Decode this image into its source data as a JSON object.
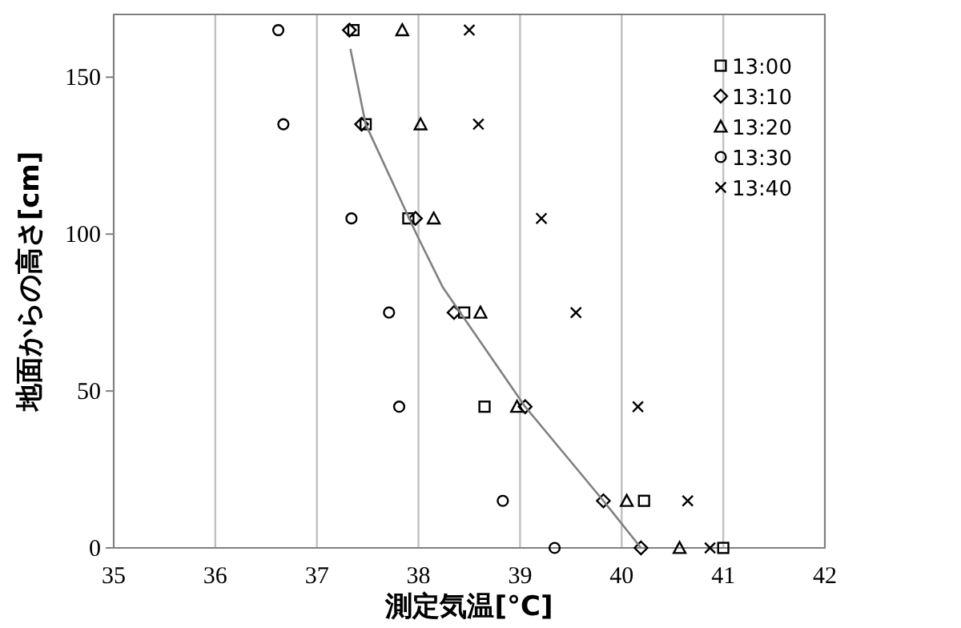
{
  "chart_data": {
    "type": "scatter",
    "xlabel": "測定気温[°C]",
    "ylabel": "地面からの高さ[cm]",
    "xlim": [
      35,
      42
    ],
    "xticks": [
      35,
      36,
      37,
      38,
      39,
      40,
      41,
      42
    ],
    "ylim": [
      0,
      170
    ],
    "yticks": [
      0,
      50,
      100,
      150
    ],
    "grid": "x",
    "legend": "top right",
    "series": [
      {
        "name": "13:00",
        "color": "#000000",
        "marker": "square",
        "x": [
          37.36,
          37.48,
          37.9,
          38.45,
          38.65,
          40.22,
          41.0
        ],
        "values": [
          165,
          135,
          105,
          75,
          45,
          15,
          0
        ]
      },
      {
        "name": "13:10",
        "color": "#000000",
        "marker": "diamond",
        "x": [
          37.32,
          37.44,
          37.97,
          38.35,
          39.05,
          39.82,
          40.19
        ],
        "values": [
          165,
          135,
          105,
          75,
          45,
          15,
          0
        ]
      },
      {
        "name": "13:20",
        "color": "#000000",
        "marker": "triangle",
        "x": [
          37.84,
          38.02,
          38.15,
          38.61,
          38.97,
          40.05,
          40.57
        ],
        "values": [
          165,
          135,
          105,
          75,
          45,
          15,
          0
        ]
      },
      {
        "name": "13:30",
        "color": "#000000",
        "marker": "circle",
        "x": [
          36.62,
          36.67,
          37.34,
          37.71,
          37.81,
          38.83,
          39.34
        ],
        "values": [
          165,
          135,
          105,
          75,
          45,
          15,
          0
        ]
      },
      {
        "name": "13:40",
        "color": "#000000",
        "marker": "cross",
        "x": [
          38.5,
          38.59,
          39.21,
          39.55,
          40.16,
          40.65,
          40.87
        ],
        "values": [
          165,
          135,
          105,
          75,
          45,
          15,
          0
        ]
      },
      {
        "type": "line",
        "color": "#808080",
        "marker": "none",
        "x": [
          37.33,
          37.48,
          37.98,
          38.24,
          39.05,
          39.82,
          40.19
        ],
        "values": [
          159,
          135,
          100,
          83,
          45,
          15,
          0
        ]
      }
    ]
  }
}
